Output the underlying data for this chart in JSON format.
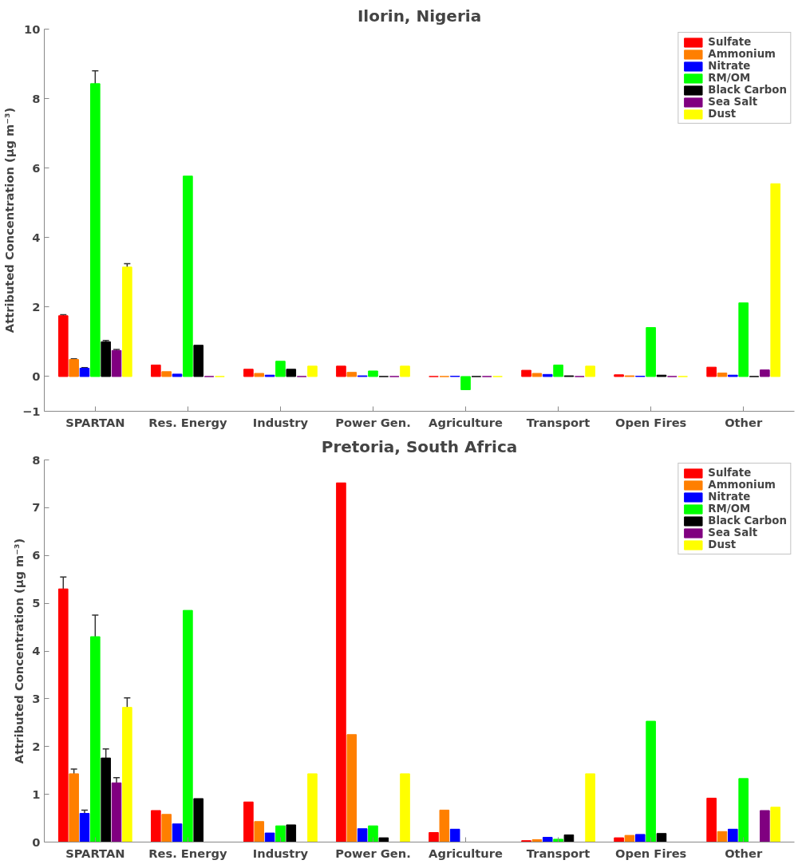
{
  "chart_data": [
    {
      "type": "bar",
      "title": "Ilorin, Nigeria",
      "ylabel": "Attributed Concentration (μg m⁻³)",
      "categories": [
        "SPARTAN",
        "Res. Energy",
        "Industry",
        "Power Gen.",
        "Agriculture",
        "Transport",
        "Open Fires",
        "Other"
      ],
      "ylim": [
        -1,
        10
      ],
      "yticks": [
        -1,
        0,
        2,
        4,
        6,
        8,
        10
      ],
      "grid": false,
      "legend": "top right",
      "series": [
        {
          "name": "Sulfate",
          "color": "#ff0000",
          "values": [
            1.75,
            0.33,
            0.21,
            0.3,
            0,
            0.18,
            0.05,
            0.27
          ],
          "errors": [
            0.03,
            null,
            null,
            null,
            null,
            null,
            null,
            null
          ]
        },
        {
          "name": "Ammonium",
          "color": "#ff7f00",
          "values": [
            0.49,
            0.14,
            0.09,
            0.12,
            0,
            0.09,
            0.02,
            0.1
          ],
          "errors": [
            0.02,
            null,
            null,
            null,
            null,
            null,
            null,
            null
          ]
        },
        {
          "name": "Nitrate",
          "color": "#0000ff",
          "values": [
            0.24,
            0.07,
            0.04,
            0.02,
            0.01,
            0.06,
            0.01,
            0.04
          ],
          "errors": [
            0.02,
            null,
            null,
            null,
            null,
            null,
            null,
            null
          ]
        },
        {
          "name": "RM/OM",
          "color": "#00ff00",
          "values": [
            8.43,
            5.77,
            0.44,
            0.16,
            -0.38,
            0.33,
            1.41,
            2.12
          ],
          "errors": [
            0.37,
            null,
            null,
            null,
            null,
            null,
            null,
            null
          ]
        },
        {
          "name": "Black Carbon",
          "color": "#000000",
          "values": [
            1.0,
            0.9,
            0.21,
            0,
            0,
            0.02,
            0.04,
            0
          ],
          "errors": [
            0.04,
            null,
            null,
            null,
            null,
            null,
            null,
            null
          ]
        },
        {
          "name": "Sea Salt",
          "color": "#800080",
          "values": [
            0.75,
            0,
            0,
            0,
            0,
            0,
            0,
            0.19
          ],
          "errors": [
            0.03,
            null,
            null,
            null,
            null,
            null,
            null,
            null
          ]
        },
        {
          "name": "Dust",
          "color": "#ffff00",
          "values": [
            3.15,
            0,
            0.3,
            0.3,
            0,
            0.3,
            0,
            5.55
          ],
          "errors": [
            0.1,
            null,
            null,
            null,
            null,
            null,
            null,
            null
          ]
        }
      ]
    },
    {
      "type": "bar",
      "title": "Pretoria, South Africa",
      "ylabel": "Attributed Concentration (μg m⁻³)",
      "categories": [
        "SPARTAN",
        "Res. Energy",
        "Industry",
        "Power Gen.",
        "Agriculture",
        "Transport",
        "Open Fires",
        "Other"
      ],
      "ylim": [
        0,
        8
      ],
      "yticks": [
        0,
        1,
        2,
        3,
        4,
        5,
        6,
        7,
        8
      ],
      "grid": false,
      "legend": "top right",
      "series": [
        {
          "name": "Sulfate",
          "color": "#ff0000",
          "values": [
            5.3,
            0.66,
            0.84,
            7.52,
            0.2,
            0.03,
            0.09,
            0.92
          ],
          "errors": [
            0.25,
            null,
            null,
            null,
            null,
            null,
            null,
            null
          ]
        },
        {
          "name": "Ammonium",
          "color": "#ff7f00",
          "values": [
            1.43,
            0.58,
            0.43,
            2.25,
            0.67,
            0.05,
            0.14,
            0.22
          ],
          "errors": [
            0.1,
            null,
            null,
            null,
            null,
            null,
            null,
            null
          ]
        },
        {
          "name": "Nitrate",
          "color": "#0000ff",
          "values": [
            0.6,
            0.38,
            0.19,
            0.28,
            0.27,
            0.1,
            0.16,
            0.27
          ],
          "errors": [
            0.07,
            null,
            null,
            null,
            null,
            null,
            null,
            null
          ]
        },
        {
          "name": "RM/OM",
          "color": "#00ff00",
          "values": [
            4.3,
            4.85,
            0.34,
            0.34,
            null,
            0.06,
            2.53,
            1.33
          ],
          "errors": [
            0.45,
            null,
            null,
            null,
            null,
            null,
            null,
            null
          ]
        },
        {
          "name": "Black Carbon",
          "color": "#000000",
          "values": [
            1.76,
            0.91,
            0.36,
            0.09,
            null,
            0.15,
            0.18,
            null
          ],
          "errors": [
            0.19,
            null,
            null,
            null,
            null,
            null,
            null,
            null
          ]
        },
        {
          "name": "Sea Salt",
          "color": "#800080",
          "values": [
            1.24,
            null,
            null,
            null,
            null,
            null,
            null,
            0.66
          ],
          "errors": [
            0.11,
            null,
            null,
            null,
            null,
            null,
            null,
            null
          ]
        },
        {
          "name": "Dust",
          "color": "#ffff00",
          "values": [
            2.82,
            null,
            1.43,
            1.43,
            null,
            1.43,
            null,
            0.73
          ],
          "errors": [
            0.2,
            null,
            null,
            null,
            null,
            null,
            null,
            null
          ]
        }
      ]
    }
  ]
}
